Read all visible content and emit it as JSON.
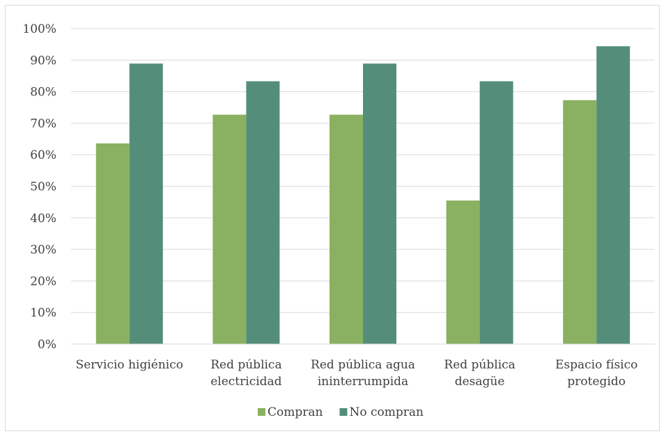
{
  "chart_data": {
    "type": "bar",
    "categories": [
      [
        "Servicio higiénico"
      ],
      [
        "Red pública",
        "electricidad"
      ],
      [
        "Red pública agua",
        "ininterrumpida"
      ],
      [
        "Red pública",
        "desagüe"
      ],
      [
        "Espacio físico",
        "protegido"
      ]
    ],
    "series": [
      {
        "name": "Compran",
        "color": "#8ab161",
        "values": [
          63.6,
          72.7,
          72.7,
          45.5,
          77.3
        ]
      },
      {
        "name": "No compran",
        "color": "#548e7b",
        "values": [
          88.9,
          83.3,
          88.9,
          83.3,
          94.4
        ]
      }
    ],
    "ylim": [
      0,
      100
    ],
    "y_ticks": [
      "0%",
      "10%",
      "20%",
      "30%",
      "40%",
      "50%",
      "60%",
      "70%",
      "80%",
      "90%",
      "100%"
    ],
    "grid": true,
    "legend_position": "bottom"
  }
}
